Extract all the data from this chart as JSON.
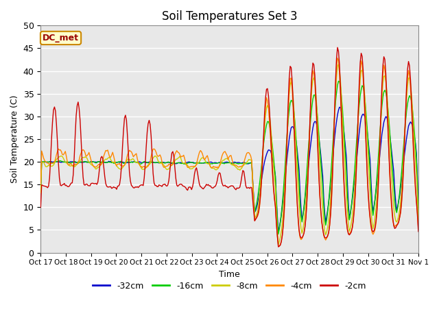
{
  "title": "Soil Temperatures Set 3",
  "xlabel": "Time",
  "ylabel": "Soil Temperature (C)",
  "ylim": [
    0,
    50
  ],
  "yticks": [
    0,
    5,
    10,
    15,
    20,
    25,
    30,
    35,
    40,
    45,
    50
  ],
  "xtick_labels": [
    "Oct 17",
    "Oct 18",
    "Oct 19",
    "Oct 20",
    "Oct 21",
    "Oct 22",
    "Oct 23",
    "Oct 24",
    "Oct 25",
    "Oct 26",
    "Oct 27",
    "Oct 28",
    "Oct 29",
    "Oct 30",
    "Oct 31",
    "Nov 1"
  ],
  "legend_labels": [
    "-32cm",
    "-16cm",
    "-8cm",
    "-4cm",
    "-2cm"
  ],
  "line_colors": [
    "#0000cc",
    "#00cc00",
    "#cccc00",
    "#ff8800",
    "#cc0000"
  ],
  "annotation_text": "DC_met",
  "annotation_bg": "#ffffcc",
  "annotation_border": "#cc8800",
  "bg_color": "#e8e8e8",
  "grid_color": "#ffffff",
  "title_fontsize": 12
}
